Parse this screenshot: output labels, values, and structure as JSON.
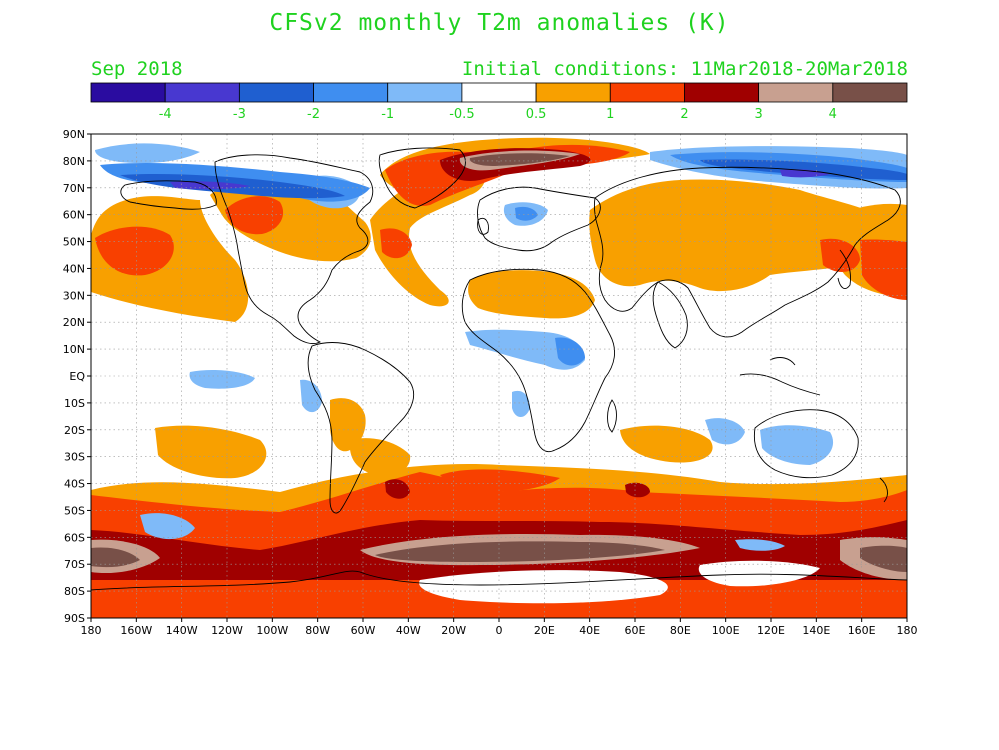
{
  "header": {
    "title": "CFSv2 monthly T2m anomalies (K)",
    "valid_month": "Sep 2018",
    "initial_conditions": "Initial conditions: 11Mar2018-20Mar2018"
  },
  "legend": {
    "colors": [
      "#2a0ca0",
      "#4838d0",
      "#1f5fd0",
      "#3f8ef0",
      "#7fbaf8",
      "#ffffff",
      "#f8a000",
      "#f84000",
      "#a00000",
      "#c8a090",
      "#785048"
    ],
    "labels": [
      "-4",
      "-3",
      "-2",
      "-1",
      "-0.5",
      "0.5",
      "1",
      "2",
      "3",
      "4"
    ]
  },
  "axes": {
    "lat_labels": [
      "90N",
      "80N",
      "70N",
      "60N",
      "50N",
      "40N",
      "30N",
      "20N",
      "10N",
      "EQ",
      "10S",
      "20S",
      "30S",
      "40S",
      "50S",
      "60S",
      "70S",
      "80S",
      "90S"
    ],
    "lon_labels": [
      "180",
      "160W",
      "140W",
      "120W",
      "100W",
      "80W",
      "60W",
      "40W",
      "20W",
      "0",
      "20E",
      "40E",
      "60E",
      "80E",
      "100E",
      "120E",
      "140E",
      "160E",
      "180"
    ]
  },
  "colors": {
    "text_green": "#1fd21f",
    "pos_05": "#f8a000",
    "pos_1": "#f84000",
    "pos_2": "#a00000",
    "pos_3": "#c8a090",
    "pos_4": "#785048",
    "neg_05": "#7fbaf8",
    "neg_1": "#3f8ef0",
    "neg_2": "#1f5fd0",
    "neg_3": "#4838d0",
    "coast": "#000000"
  }
}
